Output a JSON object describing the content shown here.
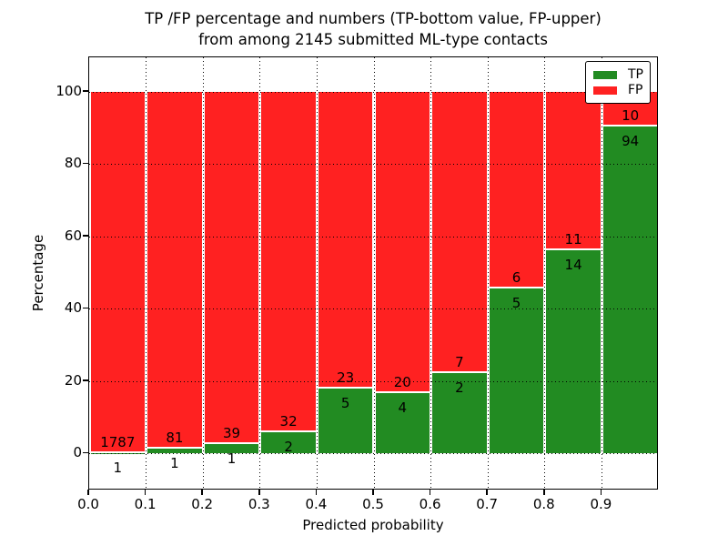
{
  "chart_data": {
    "type": "bar",
    "stacked": true,
    "title_line1": "TP /FP percentage and numbers (TP-bottom value, FP-upper)",
    "title_line2": "from among 2145 submitted ML-type contacts",
    "xlabel": "Predicted probability",
    "ylabel": "Percentage",
    "total_submitted_contacts": 2145,
    "xlim": [
      0.0,
      1.0
    ],
    "ylim": [
      -10,
      110
    ],
    "grid": true,
    "x_tick_labels": [
      "0.0",
      "0.1",
      "0.2",
      "0.3",
      "0.4",
      "0.5",
      "0.6",
      "0.7",
      "0.8",
      "0.9"
    ],
    "y_tick_labels": [
      "0",
      "20",
      "40",
      "60",
      "80",
      "100"
    ],
    "y_tick_values": [
      0,
      20,
      40,
      60,
      80,
      100
    ],
    "categories": [
      "0.0-0.1",
      "0.1-0.2",
      "0.2-0.3",
      "0.3-0.4",
      "0.4-0.5",
      "0.5-0.6",
      "0.6-0.7",
      "0.7-0.8",
      "0.8-0.9",
      "0.9-1.0"
    ],
    "series": [
      {
        "name": "TP",
        "color": "#228b22",
        "counts": [
          1,
          1,
          1,
          2,
          5,
          4,
          2,
          5,
          14,
          94
        ]
      },
      {
        "name": "FP",
        "color": "#ff2121",
        "counts": [
          1787,
          81,
          39,
          32,
          23,
          20,
          7,
          6,
          11,
          10
        ]
      }
    ],
    "value_encoding": "each bin stacked to 100%; green = TP percentage of bin, red = FP percentage of bin; numbers printed are raw counts (TP below boundary, FP above boundary)",
    "legend": {
      "position": "upper-right",
      "entries": [
        {
          "label": "TP",
          "color": "#228b22"
        },
        {
          "label": "FP",
          "color": "#ff2121"
        }
      ]
    }
  }
}
